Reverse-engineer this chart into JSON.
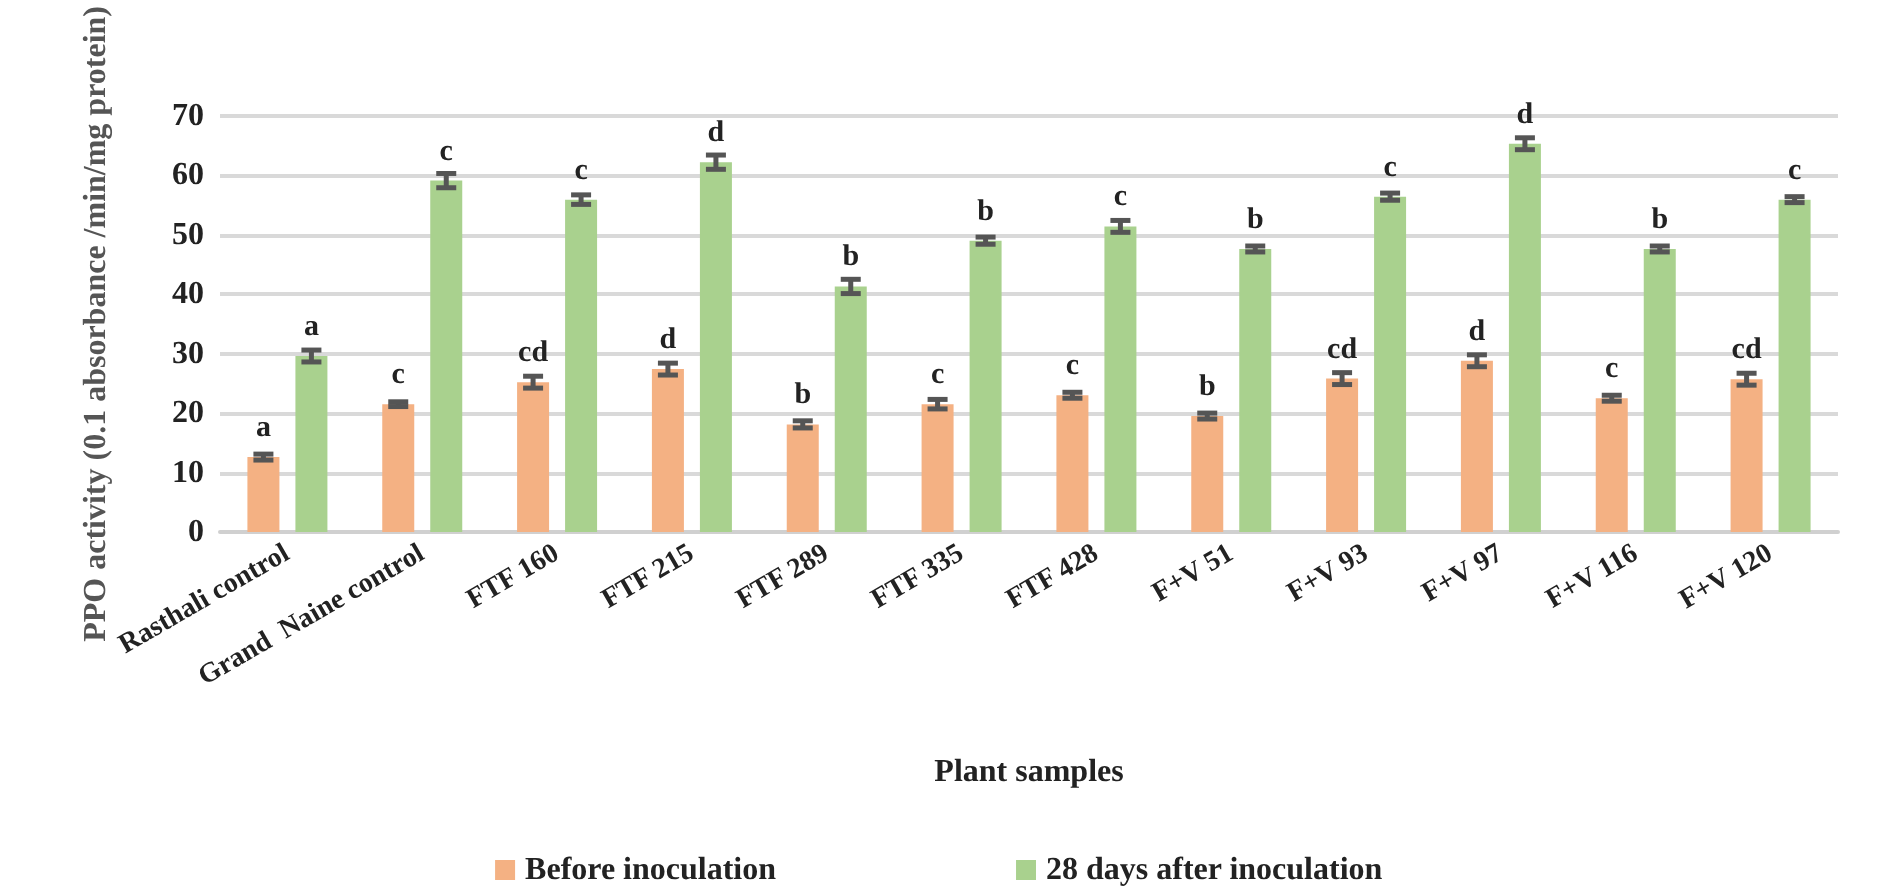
{
  "chart_data": {
    "type": "bar",
    "xlabel": "Plant samples",
    "ylabel": "PPO activity (0.1 absorbance /min/mg protein)",
    "categories": [
      "Rasthali control",
      "Grand  Naine control",
      "FTF 160",
      "FTF 215",
      "FTF 289",
      "FTF 335",
      "FTF 428",
      "F+V 51",
      "F+V 93",
      "F+V 97",
      "F+V 116",
      "F+V 120"
    ],
    "series": [
      {
        "name": "Before inoculation",
        "color": "#f4b183",
        "values": [
          12.6,
          21.5,
          25.2,
          27.4,
          18.1,
          21.5,
          23.0,
          19.5,
          25.8,
          28.8,
          22.5,
          25.7
        ],
        "errors": [
          0.5,
          0.4,
          1.0,
          1.0,
          0.6,
          0.8,
          0.5,
          0.5,
          1.0,
          1.0,
          0.5,
          1.0
        ],
        "value_labels": [
          "a",
          "c",
          "cd",
          "d",
          "b",
          "c",
          "c",
          "b",
          "cd",
          "d",
          "c",
          "cd"
        ]
      },
      {
        "name": "28 days after inoculation",
        "color": "#a9d18e",
        "values": [
          29.6,
          59.1,
          55.9,
          62.2,
          41.3,
          49.0,
          51.4,
          47.6,
          56.4,
          65.3,
          47.6,
          55.9
        ],
        "errors": [
          1.0,
          1.2,
          0.8,
          1.2,
          1.2,
          0.6,
          1.0,
          0.5,
          0.6,
          1.0,
          0.5,
          0.5
        ],
        "value_labels": [
          "a",
          "c",
          "c",
          "d",
          "b",
          "b",
          "c",
          "b",
          "c",
          "d",
          "b",
          "c"
        ]
      }
    ],
    "ylim": [
      0,
      70
    ],
    "yticks": [
      0,
      10,
      20,
      30,
      40,
      50,
      60,
      70
    ],
    "grid": "y",
    "legend": "bottom"
  }
}
